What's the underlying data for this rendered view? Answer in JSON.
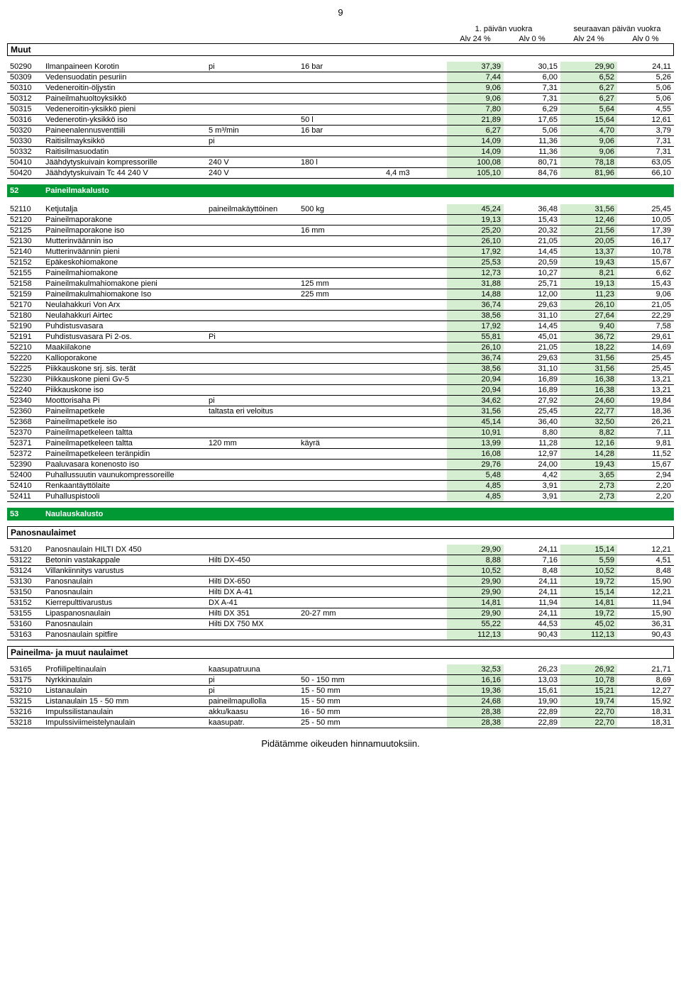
{
  "page_number": "9",
  "header": {
    "group1": "1. päivän vuokra",
    "group2": "seuraavan päivän vuokra",
    "col1": "Alv 24 %",
    "col2": "Alv 0 %",
    "col3": "Alv 24 %",
    "col4": "Alv 0 %"
  },
  "muut_label": "Muut",
  "colors": {
    "highlight": "#d5edd0",
    "section_bg": "#009933",
    "section_fg": "#ffffff",
    "border": "#000000"
  },
  "section_muut": [
    {
      "code": "50290",
      "name": "Ilmanpaineen Korotin",
      "c3": "pi",
      "c4": "16 bar",
      "c5": "",
      "v": [
        "37,39",
        "30,15",
        "29,90",
        "24,11"
      ]
    },
    {
      "code": "50309",
      "name": "Vedensuodatin pesuriin",
      "c3": "",
      "c4": "",
      "c5": "",
      "v": [
        "7,44",
        "6,00",
        "6,52",
        "5,26"
      ]
    },
    {
      "code": "50310",
      "name": "Vedeneroitin-öljystin",
      "c3": "",
      "c4": "",
      "c5": "",
      "v": [
        "9,06",
        "7,31",
        "6,27",
        "5,06"
      ]
    },
    {
      "code": "50312",
      "name": "Paineilmahuoltoyksikkö",
      "c3": "",
      "c4": "",
      "c5": "",
      "v": [
        "9,06",
        "7,31",
        "6,27",
        "5,06"
      ]
    },
    {
      "code": "50315",
      "name": "Vedeneroitin-yksikkö pieni",
      "c3": "",
      "c4": "",
      "c5": "",
      "v": [
        "7,80",
        "6,29",
        "5,64",
        "4,55"
      ]
    },
    {
      "code": "50316",
      "name": "Vedenerotin-yksikkö iso",
      "c3": "",
      "c4": "50 l",
      "c5": "",
      "v": [
        "21,89",
        "17,65",
        "15,64",
        "12,61"
      ]
    },
    {
      "code": "50320",
      "name": "Paineenalennusventtiili",
      "c3": "5 m³/min",
      "c4": "16 bar",
      "c5": "",
      "v": [
        "6,27",
        "5,06",
        "4,70",
        "3,79"
      ]
    },
    {
      "code": "50330",
      "name": "Raitisilmayksikkö",
      "c3": "pi",
      "c4": "",
      "c5": "",
      "v": [
        "14,09",
        "11,36",
        "9,06",
        "7,31"
      ]
    },
    {
      "code": "50332",
      "name": "Raitisilmasuodatin",
      "c3": "",
      "c4": "",
      "c5": "",
      "v": [
        "14,09",
        "11,36",
        "9,06",
        "7,31"
      ]
    },
    {
      "code": "50410",
      "name": "Jäähdytyskuivain kompressorille",
      "c3": "240 V",
      "c4": "180 l",
      "c5": "",
      "v": [
        "100,08",
        "80,71",
        "78,18",
        "63,05"
      ]
    },
    {
      "code": "50420",
      "name": "Jäähdytyskuivain Tc 44 240 V",
      "c3": "240 V",
      "c4": "",
      "c5": "4,4 m3",
      "v": [
        "105,10",
        "84,76",
        "81,96",
        "66,10"
      ]
    }
  ],
  "section52": {
    "code": "52",
    "title": "Paineilmakalusto"
  },
  "section52_rows": [
    {
      "code": "52110",
      "name": "Ketjutalja",
      "c3": "paineilmakäyttöinen",
      "c4": "500 kg",
      "c5": "",
      "v": [
        "45,24",
        "36,48",
        "31,56",
        "25,45"
      ]
    },
    {
      "code": "52120",
      "name": "Paineilmaporakone",
      "c3": "",
      "c4": "",
      "c5": "",
      "v": [
        "19,13",
        "15,43",
        "12,46",
        "10,05"
      ]
    },
    {
      "code": "52125",
      "name": "Paineilmaporakone iso",
      "c3": "",
      "c4": "16 mm",
      "c5": "",
      "v": [
        "25,20",
        "20,32",
        "21,56",
        "17,39"
      ]
    },
    {
      "code": "52130",
      "name": "Mutterinväännin iso",
      "c3": "",
      "c4": "",
      "c5": "",
      "v": [
        "26,10",
        "21,05",
        "20,05",
        "16,17"
      ]
    },
    {
      "code": "52140",
      "name": "Mutterinväännin pieni",
      "c3": "",
      "c4": "",
      "c5": "",
      "v": [
        "17,92",
        "14,45",
        "13,37",
        "10,78"
      ]
    },
    {
      "code": "52152",
      "name": "Epäkeskohiomakone",
      "c3": "",
      "c4": "",
      "c5": "",
      "v": [
        "25,53",
        "20,59",
        "19,43",
        "15,67"
      ]
    },
    {
      "code": "52155",
      "name": "Paineilmahiomakone",
      "c3": "",
      "c4": "",
      "c5": "",
      "v": [
        "12,73",
        "10,27",
        "8,21",
        "6,62"
      ]
    },
    {
      "code": "52158",
      "name": "Paineilmakulmahiomakone pieni",
      "c3": "",
      "c4": "125 mm",
      "c5": "",
      "v": [
        "31,88",
        "25,71",
        "19,13",
        "15,43"
      ]
    },
    {
      "code": "52159",
      "name": "Paineilmakulmahiomakone Iso",
      "c3": "",
      "c4": "225 mm",
      "c5": "",
      "v": [
        "14,88",
        "12,00",
        "11,23",
        "9,06"
      ]
    },
    {
      "code": "52170",
      "name": "Neulahakkuri Von Arx",
      "c3": "",
      "c4": "",
      "c5": "",
      "v": [
        "36,74",
        "29,63",
        "26,10",
        "21,05"
      ]
    },
    {
      "code": "52180",
      "name": "Neulahakkuri Airtec",
      "c3": "",
      "c4": "",
      "c5": "",
      "v": [
        "38,56",
        "31,10",
        "27,64",
        "22,29"
      ]
    },
    {
      "code": "52190",
      "name": "Puhdistusvasara",
      "c3": "",
      "c4": "",
      "c5": "",
      "v": [
        "17,92",
        "14,45",
        "9,40",
        "7,58"
      ]
    },
    {
      "code": "52191",
      "name": "Puhdistusvasara Pi 2-os.",
      "c3": "Pi",
      "c4": "",
      "c5": "",
      "v": [
        "55,81",
        "45,01",
        "36,72",
        "29,61"
      ]
    },
    {
      "code": "52210",
      "name": "Maakiilakone",
      "c3": "",
      "c4": "",
      "c5": "",
      "v": [
        "26,10",
        "21,05",
        "18,22",
        "14,69"
      ]
    },
    {
      "code": "52220",
      "name": "Kallioporakone",
      "c3": "",
      "c4": "",
      "c5": "",
      "v": [
        "36,74",
        "29,63",
        "31,56",
        "25,45"
      ]
    },
    {
      "code": "52225",
      "name": "Piikkauskone srj. sis. terät",
      "c3": "",
      "c4": "",
      "c5": "",
      "v": [
        "38,56",
        "31,10",
        "31,56",
        "25,45"
      ]
    },
    {
      "code": "52230",
      "name": "Piikkauskone pieni Gv-5",
      "c3": "",
      "c4": "",
      "c5": "",
      "v": [
        "20,94",
        "16,89",
        "16,38",
        "13,21"
      ]
    },
    {
      "code": "52240",
      "name": "Piikkauskone iso",
      "c3": "",
      "c4": "",
      "c5": "",
      "v": [
        "20,94",
        "16,89",
        "16,38",
        "13,21"
      ]
    },
    {
      "code": "52340",
      "name": "Moottorisaha Pi",
      "c3": "pi",
      "c4": "",
      "c5": "",
      "v": [
        "34,62",
        "27,92",
        "24,60",
        "19,84"
      ]
    },
    {
      "code": "52360",
      "name": "Paineilmapetkele",
      "c3": "taltasta eri veloitus",
      "c4": "",
      "c5": "",
      "v": [
        "31,56",
        "25,45",
        "22,77",
        "18,36"
      ]
    },
    {
      "code": "52368",
      "name": "Paineilmapetkele iso",
      "c3": "",
      "c4": "",
      "c5": "",
      "v": [
        "45,14",
        "36,40",
        "32,50",
        "26,21"
      ]
    },
    {
      "code": "52370",
      "name": "Paineilmapetkeleen taltta",
      "c3": "",
      "c4": "",
      "c5": "",
      "v": [
        "10,91",
        "8,80",
        "8,82",
        "7,11"
      ]
    },
    {
      "code": "52371",
      "name": "Paineilmapetkeleen taltta",
      "c3": "120 mm",
      "c4": "käyrä",
      "c5": "",
      "v": [
        "13,99",
        "11,28",
        "12,16",
        "9,81"
      ]
    },
    {
      "code": "52372",
      "name": "Paineilmapetkeleen teränpidin",
      "c3": "",
      "c4": "",
      "c5": "",
      "v": [
        "16,08",
        "12,97",
        "14,28",
        "11,52"
      ]
    },
    {
      "code": "52390",
      "name": "Paaluvasara konenosto iso",
      "c3": "",
      "c4": "",
      "c5": "",
      "v": [
        "29,76",
        "24,00",
        "19,43",
        "15,67"
      ]
    },
    {
      "code": "52400",
      "name": "Puhallussuutin vaunukompressoreille",
      "c3": "",
      "c4": "",
      "c5": "",
      "v": [
        "5,48",
        "4,42",
        "3,65",
        "2,94"
      ]
    },
    {
      "code": "52410",
      "name": "Renkaantäyttölaite",
      "c3": "",
      "c4": "",
      "c5": "",
      "v": [
        "4,85",
        "3,91",
        "2,73",
        "2,20"
      ]
    },
    {
      "code": "52411",
      "name": "Puhalluspistooli",
      "c3": "",
      "c4": "",
      "c5": "",
      "v": [
        "4,85",
        "3,91",
        "2,73",
        "2,20"
      ]
    }
  ],
  "section53": {
    "code": "53",
    "title": "Naulauskalusto"
  },
  "sub_panos": "Panosnaulaimet",
  "section53a_rows": [
    {
      "code": "53120",
      "name": "Panosnaulain HILTI DX 450",
      "c3": "",
      "c4": "",
      "c5": "",
      "v": [
        "29,90",
        "24,11",
        "15,14",
        "12,21"
      ]
    },
    {
      "code": "53122",
      "name": "Betonin vastakappale",
      "c3": "Hilti DX-450",
      "c4": "",
      "c5": "",
      "v": [
        "8,88",
        "7,16",
        "5,59",
        "4,51"
      ]
    },
    {
      "code": "53124",
      "name": "Villankiinnitys varustus",
      "c3": "",
      "c4": "",
      "c5": "",
      "v": [
        "10,52",
        "8,48",
        "10,52",
        "8,48"
      ]
    },
    {
      "code": "53130",
      "name": "Panosnaulain",
      "c3": "Hilti DX-650",
      "c4": "",
      "c5": "",
      "v": [
        "29,90",
        "24,11",
        "19,72",
        "15,90"
      ]
    },
    {
      "code": "53150",
      "name": "Panosnaulain",
      "c3": "Hilti DX A-41",
      "c4": "",
      "c5": "",
      "v": [
        "29,90",
        "24,11",
        "15,14",
        "12,21"
      ]
    },
    {
      "code": "53152",
      "name": "Kierrepulttivarustus",
      "c3": "DX A-41",
      "c4": "",
      "c5": "",
      "v": [
        "14,81",
        "11,94",
        "14,81",
        "11,94"
      ]
    },
    {
      "code": "53155",
      "name": "Lipaspanosnaulain",
      "c3": "Hilti DX 351",
      "c4": "20-27 mm",
      "c5": "",
      "v": [
        "29,90",
        "24,11",
        "19,72",
        "15,90"
      ]
    },
    {
      "code": "53160",
      "name": "Panosnaulain",
      "c3": "Hilti DX 750 MX",
      "c4": "",
      "c5": "",
      "v": [
        "55,22",
        "44,53",
        "45,02",
        "36,31"
      ]
    },
    {
      "code": "53163",
      "name": "Panosnaulain spitfire",
      "c3": "",
      "c4": "",
      "c5": "",
      "v": [
        "112,13",
        "90,43",
        "112,13",
        "90,43"
      ]
    }
  ],
  "sub_paineilma": "Paineilma- ja muut naulaimet",
  "section53b_rows": [
    {
      "code": "53165",
      "name": "Profiilipeltinaulain",
      "c3": "kaasupatruuna",
      "c4": "",
      "c5": "",
      "v": [
        "32,53",
        "26,23",
        "26,92",
        "21,71"
      ]
    },
    {
      "code": "53175",
      "name": "Nyrkkinaulain",
      "c3": "pi",
      "c4": "50 - 150 mm",
      "c5": "",
      "v": [
        "16,16",
        "13,03",
        "10,78",
        "8,69"
      ]
    },
    {
      "code": "53210",
      "name": "Listanaulain",
      "c3": "pi",
      "c4": "15 - 50 mm",
      "c5": "",
      "v": [
        "19,36",
        "15,61",
        "15,21",
        "12,27"
      ]
    },
    {
      "code": "53215",
      "name": "Listanaulain 15 - 50 mm",
      "c3": "paineilmapullolla",
      "c4": "15 - 50 mm",
      "c5": "",
      "v": [
        "24,68",
        "19,90",
        "19,74",
        "15,92"
      ]
    },
    {
      "code": "53216",
      "name": "Impulssilistanaulain",
      "c3": "akku/kaasu",
      "c4": "16 - 50 mm",
      "c5": "",
      "v": [
        "28,38",
        "22,89",
        "22,70",
        "18,31"
      ]
    },
    {
      "code": "53218",
      "name": "Impulssiviimeistelynaulain",
      "c3": "kaasupatr.",
      "c4": "25 - 50 mm",
      "c5": "",
      "v": [
        "28,38",
        "22,89",
        "22,70",
        "18,31"
      ]
    }
  ],
  "footer": "Pidätämme oikeuden hinnamuutoksiin."
}
